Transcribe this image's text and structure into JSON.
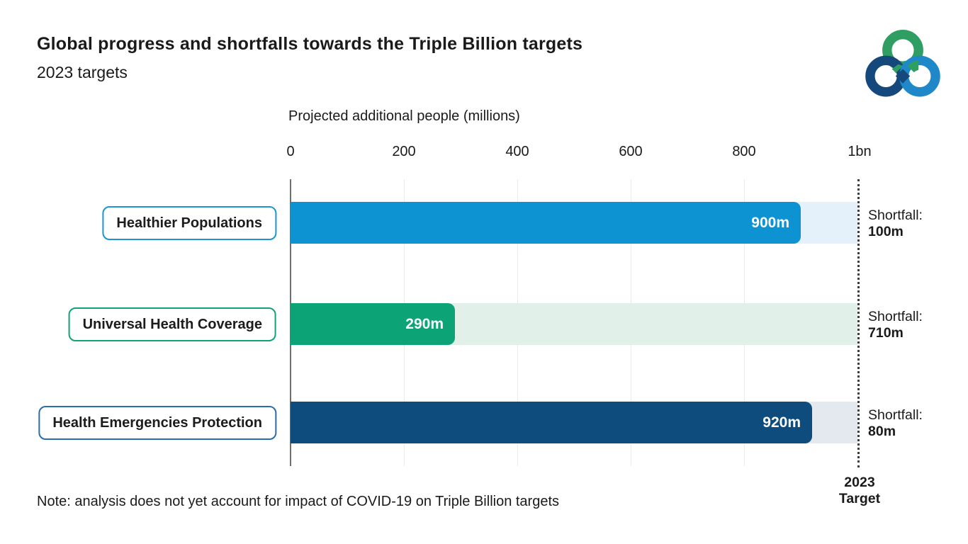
{
  "header": {
    "title": "Global progress and shortfalls towards the Triple Billion targets",
    "subtitle": "2023 targets"
  },
  "logo": {
    "name": "WHO Triple Billion logo",
    "green": "#2f9e63",
    "dark_blue": "#15497c",
    "light_blue": "#1e88c9"
  },
  "chart_data": {
    "type": "bar",
    "orientation": "horizontal",
    "xlabel": "Projected additional people (millions)",
    "x_ticks": [
      "0",
      "200",
      "400",
      "600",
      "800",
      "1bn"
    ],
    "x_tick_values": [
      0,
      200,
      400,
      600,
      800,
      1000
    ],
    "xlim": [
      0,
      1000
    ],
    "grid": "vertical",
    "categories": [
      "Healthier Populations",
      "Universal Health Coverage",
      "Health Emergencies Protection"
    ],
    "values": [
      900,
      290,
      920
    ],
    "value_labels": [
      "900m",
      "290m",
      "920m"
    ],
    "shortfall_prefix": "Shortfall:",
    "shortfalls": [
      100,
      710,
      80
    ],
    "shortfall_labels": [
      "100m",
      "710m",
      "80m"
    ],
    "bar_colors": [
      "#0e93d2",
      "#0ca376",
      "#0d4c7d"
    ],
    "track_colors": [
      "#e4f1fa",
      "#e1f1ea",
      "#e3e9ee"
    ],
    "box_border_colors": [
      "#1b95d4",
      "#12a277",
      "#2a6dad"
    ],
    "target_line": {
      "value": 1000,
      "label_lines": [
        "2023",
        "Target"
      ]
    }
  },
  "note": "Note: analysis does not yet account for impact of COVID-19 on Triple Billion targets"
}
